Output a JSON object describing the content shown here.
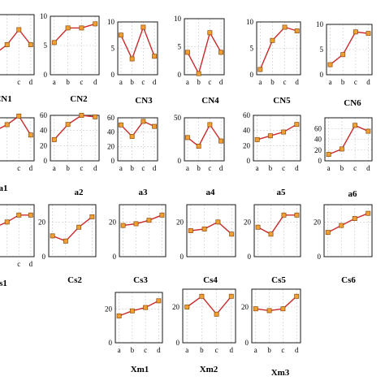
{
  "colors": {
    "line": "#cc2a2a",
    "marker_fill": "#f0a030",
    "marker_stroke": "#8a4a10",
    "grid": "#c8c8c8",
    "frame": "#000000"
  },
  "chart_data": [
    {
      "type": "line",
      "title": "CN1",
      "categories": [
        "a",
        "b",
        "c",
        "d"
      ],
      "values": [
        3.5,
        5.0,
        7.5,
        5.0
      ],
      "ylim": [
        0,
        10
      ],
      "yticks": [],
      "xticks_visible": [
        "c",
        "d"
      ]
    },
    {
      "type": "line",
      "title": "CN2",
      "categories": [
        "a",
        "b",
        "c",
        "d"
      ],
      "values": [
        5.5,
        8.0,
        8.0,
        8.7
      ],
      "ylim": [
        0,
        10
      ],
      "yticks": [
        "0",
        "5",
        "10"
      ],
      "xticks_visible": [
        "a",
        "b",
        "c",
        "d"
      ]
    },
    {
      "type": "line",
      "title": "CN3",
      "categories": [
        "a",
        "b",
        "c",
        "d"
      ],
      "values": [
        7.5,
        3.0,
        9.0,
        3.5
      ],
      "ylim": [
        0,
        10
      ],
      "yticks": [
        "0",
        "5",
        "10"
      ],
      "xticks_visible": [
        "a",
        "b",
        "c",
        "d"
      ]
    },
    {
      "type": "line",
      "title": "CN4",
      "categories": [
        "a",
        "b",
        "c",
        "d"
      ],
      "values": [
        4.0,
        0.2,
        7.5,
        4.0
      ],
      "ylim": [
        0,
        10
      ],
      "yticks": [
        "0",
        "5",
        "10"
      ],
      "xticks_visible": [
        "a",
        "b",
        "c",
        "d"
      ]
    },
    {
      "type": "line",
      "title": "CN5",
      "categories": [
        "a",
        "b",
        "c",
        "d"
      ],
      "values": [
        1.0,
        6.5,
        9.0,
        8.3
      ],
      "ylim": [
        0,
        10
      ],
      "yticks": [
        "0",
        "5",
        "10"
      ],
      "xticks_visible": [
        "a",
        "b",
        "c",
        "d"
      ]
    },
    {
      "type": "line",
      "title": "CN6",
      "categories": [
        "a",
        "b",
        "c",
        "d"
      ],
      "values": [
        2.0,
        4.0,
        8.5,
        8.2
      ],
      "ylim": [
        0,
        10
      ],
      "yticks": [
        "0",
        "5",
        "10"
      ],
      "xticks_visible": [
        "a",
        "b",
        "c",
        "d"
      ]
    },
    {
      "type": "line",
      "title": "a1",
      "categories": [
        "a",
        "b",
        "c",
        "d"
      ],
      "values": [
        35,
        42,
        52,
        30
      ],
      "ylim": [
        0,
        50
      ],
      "yticks": [],
      "xticks_visible": [
        "c",
        "d"
      ]
    },
    {
      "type": "line",
      "title": "a2",
      "categories": [
        "a",
        "b",
        "c",
        "d"
      ],
      "values": [
        28,
        48,
        60,
        58
      ],
      "ylim": [
        0,
        60
      ],
      "yticks": [
        "0",
        "20",
        "40",
        "60"
      ],
      "xticks_visible": [
        "a",
        "b",
        "c",
        "d"
      ]
    },
    {
      "type": "line",
      "title": "a3",
      "categories": [
        "a",
        "b",
        "c",
        "d"
      ],
      "values": [
        50,
        34,
        55,
        48
      ],
      "ylim": [
        0,
        60
      ],
      "yticks": [
        "0",
        "20",
        "40",
        "60"
      ],
      "xticks_visible": [
        "a",
        "b",
        "c",
        "d"
      ]
    },
    {
      "type": "line",
      "title": "a4",
      "categories": [
        "a",
        "b",
        "c",
        "d"
      ],
      "values": [
        27,
        17,
        42,
        23
      ],
      "ylim": [
        0,
        50
      ],
      "yticks": [
        "0",
        "50"
      ],
      "xticks_visible": [
        "a",
        "b",
        "c",
        "d"
      ]
    },
    {
      "type": "line",
      "title": "a5",
      "categories": [
        "a",
        "b",
        "c",
        "d"
      ],
      "values": [
        28,
        33,
        38,
        48
      ],
      "ylim": [
        0,
        60
      ],
      "yticks": [
        "0",
        "20",
        "40",
        "60"
      ],
      "xticks_visible": [
        "a",
        "b",
        "c",
        "d"
      ]
    },
    {
      "type": "line",
      "title": "a6",
      "categories": [
        "a",
        "b",
        "c",
        "d"
      ],
      "values": [
        12,
        22,
        66,
        55
      ],
      "ylim": [
        0,
        80
      ],
      "yticks": [
        "0",
        "20",
        "40",
        "60"
      ],
      "xticks_visible": [
        "a",
        "b",
        "c",
        "d"
      ]
    },
    {
      "type": "line",
      "title": "s1",
      "categories": [
        "a",
        "b",
        "c",
        "d"
      ],
      "values": [
        17,
        20,
        24,
        24
      ],
      "ylim": [
        0,
        30
      ],
      "yticks": [],
      "xticks_visible": [
        "c",
        "d"
      ]
    },
    {
      "type": "line",
      "title": "Cs2",
      "categories": [
        "a",
        "b",
        "c",
        "d"
      ],
      "values": [
        12,
        9,
        17,
        23
      ],
      "ylim": [
        0,
        30
      ],
      "yticks": [
        "0",
        "20"
      ],
      "xticks_visible": []
    },
    {
      "type": "line",
      "title": "Cs3",
      "categories": [
        "a",
        "b",
        "c",
        "d"
      ],
      "values": [
        18,
        19,
        21,
        24
      ],
      "ylim": [
        0,
        30
      ],
      "yticks": [
        "0",
        "20"
      ],
      "xticks_visible": []
    },
    {
      "type": "line",
      "title": "Cs4",
      "categories": [
        "a",
        "b",
        "c",
        "d"
      ],
      "values": [
        15,
        16,
        20,
        13
      ],
      "ylim": [
        0,
        30
      ],
      "yticks": [
        "0",
        "20"
      ],
      "xticks_visible": []
    },
    {
      "type": "line",
      "title": "Cs5",
      "categories": [
        "a",
        "b",
        "c",
        "d"
      ],
      "values": [
        17,
        13,
        24,
        24
      ],
      "ylim": [
        0,
        30
      ],
      "yticks": [
        "0",
        "20"
      ],
      "xticks_visible": []
    },
    {
      "type": "line",
      "title": "Cs6",
      "categories": [
        "a",
        "b",
        "c",
        "d"
      ],
      "values": [
        14,
        18,
        22,
        25
      ],
      "ylim": [
        0,
        30
      ],
      "yticks": [
        "0",
        "20"
      ],
      "xticks_visible": []
    },
    {
      "type": "line",
      "title": "Xm1",
      "categories": [
        "a",
        "b",
        "c",
        "d"
      ],
      "values": [
        16,
        19,
        21,
        25
      ],
      "ylim": [
        0,
        30
      ],
      "yticks": [
        "0",
        "20"
      ],
      "xticks_visible": [
        "a",
        "b",
        "c",
        "d"
      ]
    },
    {
      "type": "line",
      "title": "Xm2",
      "categories": [
        "a",
        "b",
        "c",
        "d"
      ],
      "values": [
        20,
        26,
        16,
        26
      ],
      "ylim": [
        0,
        30
      ],
      "yticks": [
        "0",
        "20"
      ],
      "xticks_visible": [
        "a",
        "b",
        "c",
        "d"
      ]
    },
    {
      "type": "line",
      "title": "Xm3",
      "categories": [
        "a",
        "b",
        "c",
        "d"
      ],
      "values": [
        19,
        18,
        19,
        26
      ],
      "ylim": [
        0,
        30
      ],
      "yticks": [
        "0",
        "20"
      ],
      "xticks_visible": [
        "a",
        "b",
        "c",
        "d"
      ]
    }
  ]
}
